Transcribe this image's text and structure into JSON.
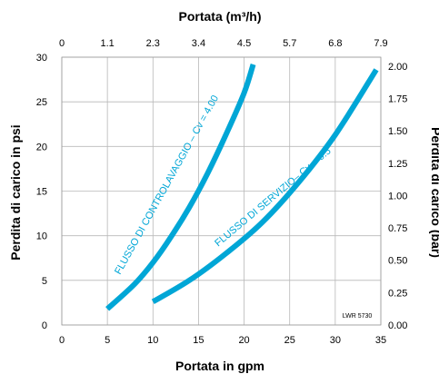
{
  "chart_data": {
    "type": "line",
    "title": "Portata (m³/h)",
    "xlabel": "Portata in gpm",
    "ylabel": "Perdita di carico in psi",
    "y2label": "Perdita di carico (bar)",
    "xlim": [
      0,
      35
    ],
    "ylim": [
      0,
      30
    ],
    "y2lim": [
      0,
      2.07
    ],
    "x_ticks": [
      "0",
      "5",
      "10",
      "15",
      "20",
      "25",
      "30",
      "35"
    ],
    "y_ticks": [
      "0",
      "5",
      "10",
      "15",
      "20",
      "25",
      "30"
    ],
    "x2_ticks": [
      "0",
      "1.1",
      "2.3",
      "3.4",
      "4.5",
      "5.7",
      "6.8",
      "7.9"
    ],
    "y2_ticks": [
      "0.00",
      "0.25",
      "0.50",
      "0.75",
      "1.00",
      "1.25",
      "1.50",
      "1.75",
      "2.00"
    ],
    "grid": true,
    "series_color": "#00a6d6",
    "series": [
      {
        "name": "FLUSSO DI CONTROLAVAGGIO – Cv = 4.00",
        "x": [
          5,
          8,
          10,
          12,
          14,
          16,
          18,
          20,
          21
        ],
        "y": [
          1.8,
          4.6,
          7.0,
          9.9,
          13.2,
          17.0,
          21.3,
          26.0,
          29.2
        ]
      },
      {
        "name": "FLUSSO DI SERVIZIO– Cv = 6.5",
        "x": [
          10,
          14,
          18,
          22,
          26,
          30,
          34.5
        ],
        "y": [
          2.6,
          5.0,
          8.0,
          11.5,
          16.0,
          21.3,
          28.6
        ]
      }
    ],
    "annotation": "LWR 5730"
  }
}
